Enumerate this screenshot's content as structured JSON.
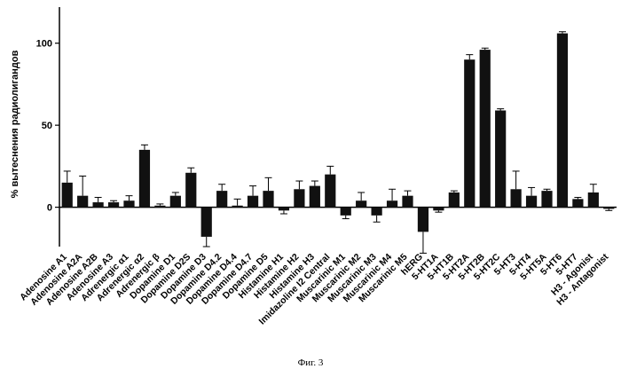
{
  "chart_data": {
    "type": "bar",
    "title": "",
    "xlabel": "",
    "ylabel": "% вытеснения радиолигандов",
    "ylim": [
      -24,
      122
    ],
    "yticks": [
      0,
      50,
      100
    ],
    "grid": false,
    "legend": "none",
    "bar_color": "#111111",
    "categories": [
      "Adenosine A1",
      "Adenosine A2A",
      "Adenosine A2B",
      "Adenosine A3",
      "Adrenergic α1",
      "Adrenergic α2",
      "Adrenergic β",
      "Dopamine D1",
      "Dopamine D2S",
      "Dopamine D3",
      "Dopamine D4.2",
      "Dopamine D4.4",
      "Dopamine D4.7",
      "Dopamine D5",
      "Histamine H1",
      "Histamine H2",
      "Histamine H3",
      "Imidazoline I2 Central",
      "Muscarinic M1",
      "Muscarinic M2",
      "Muscarinic M3",
      "Muscarinic M4",
      "Muscarinic M5",
      "hERG",
      "5-HT1A",
      "5-HT1B",
      "5-HT2A",
      "5-HT2B",
      "5-HT2C",
      "5-HT3",
      "5-HT4",
      "5-HT5A",
      "5-HT6",
      "5-HT7",
      "H3 - Agonist",
      "H3 - Antagonist"
    ],
    "values": [
      15,
      7,
      3,
      3,
      4,
      35,
      1,
      7,
      21,
      -18,
      10,
      1,
      7,
      10,
      -2,
      11,
      13,
      20,
      -5,
      4,
      -5,
      4,
      7,
      -15,
      -2,
      9,
      90,
      96,
      59,
      11,
      7,
      10,
      106,
      5,
      9,
      -1
    ],
    "errors": [
      7,
      12,
      3,
      1,
      3,
      3,
      1,
      2,
      3,
      6,
      4,
      4,
      6,
      8,
      2,
      5,
      3,
      5,
      2,
      5,
      4,
      7,
      3,
      13,
      1,
      1,
      3,
      1,
      1,
      11,
      5,
      1,
      1,
      1,
      5,
      1
    ]
  },
  "caption": "Фиг. 3"
}
